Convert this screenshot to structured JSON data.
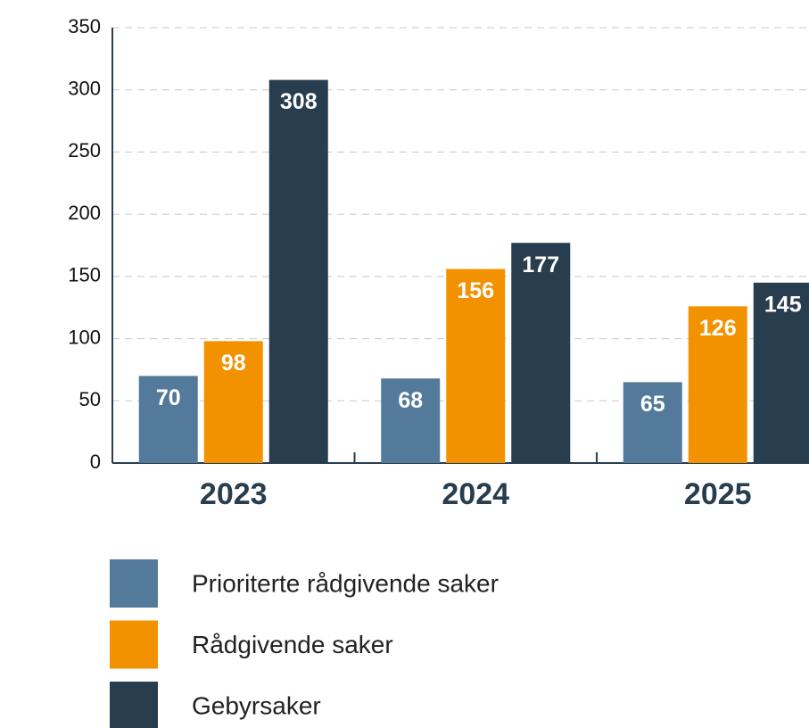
{
  "chart_data": {
    "type": "bar",
    "categories": [
      "2023",
      "2024",
      "2025"
    ],
    "series": [
      {
        "name": "Prioriterte rådgivende saker",
        "color": "#537a9b",
        "values": [
          70,
          68,
          65
        ]
      },
      {
        "name": "Rådgivende saker",
        "color": "#f39200",
        "values": [
          98,
          156,
          126
        ]
      },
      {
        "name": "Gebyrsaker",
        "color": "#283d4d",
        "values": [
          308,
          177,
          145
        ]
      }
    ],
    "ylim": [
      0,
      350
    ],
    "yticks": [
      0,
      50,
      100,
      150,
      200,
      250,
      300,
      350
    ],
    "grid": true,
    "legend": "bottom"
  }
}
